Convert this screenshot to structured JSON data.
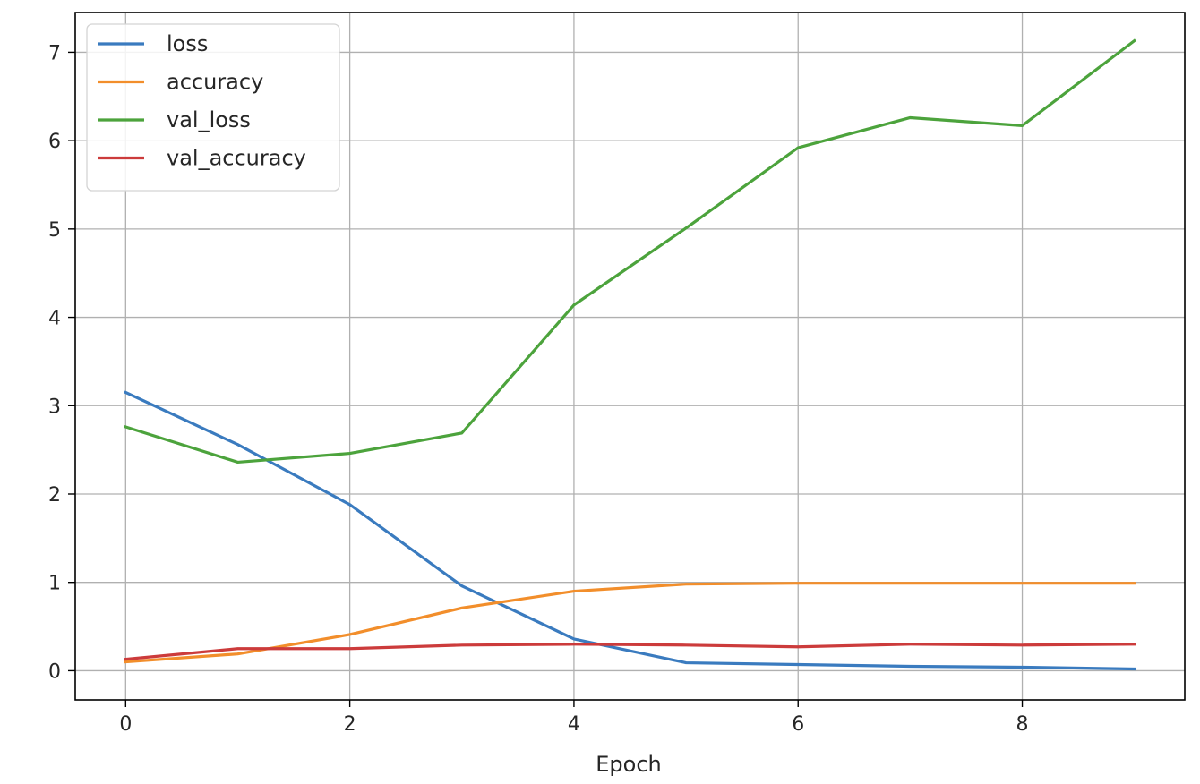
{
  "chart_data": {
    "type": "line",
    "title": "",
    "xlabel": "Epoch",
    "ylabel": "",
    "x": [
      0,
      1,
      2,
      3,
      4,
      5,
      6,
      7,
      8,
      9
    ],
    "xlim": [
      -0.45,
      9.45
    ],
    "ylim": [
      -0.33,
      7.45
    ],
    "xticks": [
      0,
      2,
      4,
      6,
      8
    ],
    "yticks": [
      0,
      1,
      2,
      3,
      4,
      5,
      6,
      7
    ],
    "grid": true,
    "legend_position": "top-left",
    "series": [
      {
        "name": "loss",
        "color": "#3a7bbf",
        "values": [
          3.15,
          2.56,
          1.88,
          0.96,
          0.36,
          0.09,
          0.07,
          0.05,
          0.04,
          0.02
        ]
      },
      {
        "name": "accuracy",
        "color": "#f28e2b",
        "values": [
          0.1,
          0.19,
          0.41,
          0.71,
          0.9,
          0.98,
          0.99,
          0.99,
          0.99,
          0.99
        ]
      },
      {
        "name": "val_loss",
        "color": "#4ca33c",
        "values": [
          2.76,
          2.36,
          2.46,
          2.69,
          4.14,
          5.01,
          5.92,
          6.26,
          6.17,
          7.13
        ]
      },
      {
        "name": "val_accuracy",
        "color": "#cc3b3b",
        "values": [
          0.13,
          0.25,
          0.25,
          0.29,
          0.3,
          0.29,
          0.27,
          0.3,
          0.29,
          0.3
        ]
      }
    ]
  }
}
